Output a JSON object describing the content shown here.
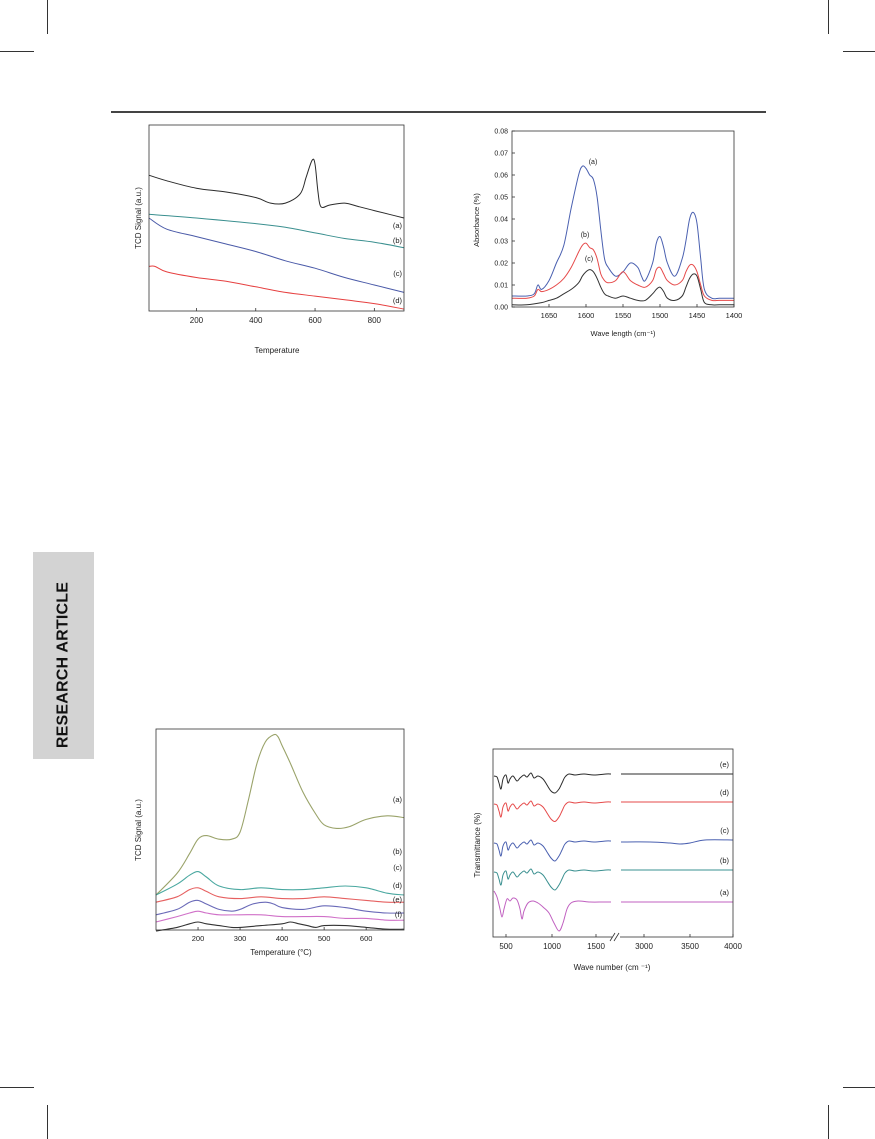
{
  "side_tab": {
    "label": "RESEARCH ARTICLE"
  },
  "chart_data": [
    {
      "type": "line",
      "ylabel": "TCD Signal (a.u.)",
      "xlabel": "Temperature",
      "xlim": [
        40,
        900
      ],
      "xticks": [
        200,
        400,
        600,
        800
      ],
      "grid": false,
      "series": [
        {
          "name": "(a)",
          "color": "#2b2b2b",
          "x": [
            40,
            100,
            200,
            300,
            400,
            450,
            500,
            550,
            570,
            590,
            600,
            610,
            620,
            650,
            700,
            750,
            800,
            850,
            900
          ],
          "y": [
            0.73,
            0.7,
            0.66,
            0.64,
            0.61,
            0.58,
            0.58,
            0.63,
            0.72,
            0.81,
            0.79,
            0.64,
            0.56,
            0.57,
            0.58,
            0.56,
            0.54,
            0.52,
            0.5
          ]
        },
        {
          "name": "(b)",
          "color": "#3a8f8f",
          "x": [
            40,
            200,
            400,
            500,
            600,
            700,
            800,
            900
          ],
          "y": [
            0.52,
            0.5,
            0.47,
            0.45,
            0.42,
            0.39,
            0.37,
            0.34
          ]
        },
        {
          "name": "(c)",
          "color": "#4a5aa8",
          "x": [
            40,
            100,
            200,
            300,
            400,
            500,
            600,
            700,
            800,
            900
          ],
          "y": [
            0.5,
            0.44,
            0.4,
            0.36,
            0.32,
            0.27,
            0.23,
            0.18,
            0.14,
            0.1
          ]
        },
        {
          "name": "(d)",
          "color": "#e64040",
          "x": [
            40,
            60,
            100,
            200,
            300,
            400,
            500,
            600,
            700,
            800,
            900
          ],
          "y": [
            0.24,
            0.24,
            0.21,
            0.18,
            0.16,
            0.13,
            0.1,
            0.08,
            0.06,
            0.04,
            0.01
          ]
        }
      ]
    },
    {
      "type": "line",
      "ylabel": "Absorbance (%)",
      "xlabel": "Wave length (cm⁻¹)",
      "xlim": [
        1700,
        1400
      ],
      "xticks": [
        1650,
        1600,
        1550,
        1500,
        1450,
        1400
      ],
      "ylim": [
        0,
        0.08
      ],
      "yticks": [
        "0.00",
        "0.01",
        "0.02",
        "0.03",
        "0.04",
        "0.05",
        "0.06",
        "0.07",
        "0.08"
      ],
      "grid": false,
      "series": [
        {
          "name": "(a)",
          "color": "#4a60b0",
          "x": [
            1700,
            1680,
            1670,
            1665,
            1660,
            1650,
            1640,
            1630,
            1620,
            1610,
            1605,
            1600,
            1595,
            1590,
            1585,
            1580,
            1575,
            1570,
            1560,
            1550,
            1540,
            1530,
            1525,
            1520,
            1510,
            1505,
            1500,
            1495,
            1490,
            1480,
            1470,
            1465,
            1460,
            1455,
            1450,
            1445,
            1440,
            1430,
            1420,
            1410,
            1400
          ],
          "y": [
            0.005,
            0.005,
            0.006,
            0.01,
            0.008,
            0.012,
            0.02,
            0.028,
            0.045,
            0.06,
            0.064,
            0.063,
            0.06,
            0.058,
            0.05,
            0.035,
            0.022,
            0.018,
            0.014,
            0.016,
            0.02,
            0.018,
            0.014,
            0.012,
            0.02,
            0.029,
            0.032,
            0.027,
            0.02,
            0.014,
            0.022,
            0.03,
            0.04,
            0.043,
            0.038,
            0.022,
            0.008,
            0.004,
            0.004,
            0.004,
            0.004
          ]
        },
        {
          "name": "(b)",
          "color": "#e64a4a",
          "x": [
            1700,
            1680,
            1670,
            1665,
            1660,
            1650,
            1640,
            1630,
            1620,
            1610,
            1605,
            1600,
            1595,
            1590,
            1585,
            1580,
            1575,
            1570,
            1560,
            1550,
            1540,
            1530,
            1520,
            1510,
            1505,
            1500,
            1495,
            1490,
            1480,
            1470,
            1465,
            1460,
            1455,
            1450,
            1445,
            1440,
            1430,
            1420,
            1410,
            1400
          ],
          "y": [
            0.004,
            0.004,
            0.005,
            0.008,
            0.007,
            0.008,
            0.01,
            0.013,
            0.018,
            0.025,
            0.028,
            0.029,
            0.027,
            0.026,
            0.022,
            0.015,
            0.012,
            0.011,
            0.012,
            0.016,
            0.012,
            0.01,
            0.009,
            0.012,
            0.017,
            0.018,
            0.015,
            0.012,
            0.01,
            0.012,
            0.016,
            0.019,
            0.019,
            0.016,
            0.01,
            0.005,
            0.003,
            0.003,
            0.003,
            0.003
          ]
        },
        {
          "name": "(c)",
          "color": "#333333",
          "x": [
            1700,
            1680,
            1660,
            1650,
            1640,
            1630,
            1620,
            1610,
            1605,
            1600,
            1595,
            1590,
            1585,
            1580,
            1575,
            1570,
            1560,
            1550,
            1540,
            1530,
            1520,
            1510,
            1505,
            1500,
            1495,
            1490,
            1480,
            1470,
            1465,
            1460,
            1455,
            1450,
            1445,
            1440,
            1430,
            1420,
            1410,
            1400
          ],
          "y": [
            0.001,
            0.001,
            0.002,
            0.003,
            0.004,
            0.006,
            0.008,
            0.011,
            0.014,
            0.016,
            0.017,
            0.016,
            0.013,
            0.009,
            0.006,
            0.005,
            0.004,
            0.005,
            0.004,
            0.003,
            0.003,
            0.006,
            0.008,
            0.009,
            0.007,
            0.004,
            0.003,
            0.005,
            0.009,
            0.013,
            0.015,
            0.014,
            0.008,
            0.002,
            0.001,
            0.001,
            0.001,
            0.001
          ]
        }
      ]
    },
    {
      "type": "line",
      "ylabel": "TCD Signal (a.u.)",
      "xlabel": "Temperature (°C)",
      "xlim": [
        100,
        690
      ],
      "xticks": [
        200,
        300,
        400,
        500,
        600
      ],
      "grid": false,
      "series": [
        {
          "name": "(a)",
          "color": "#9aa36a",
          "x": [
            100,
            150,
            180,
            200,
            220,
            250,
            280,
            300,
            320,
            340,
            360,
            380,
            390,
            400,
            420,
            450,
            480,
            500,
            530,
            560,
            600,
            650,
            690
          ],
          "y": [
            0.15,
            0.27,
            0.38,
            0.46,
            0.48,
            0.46,
            0.46,
            0.5,
            0.68,
            0.88,
            1.0,
            1.04,
            1.03,
            0.98,
            0.88,
            0.72,
            0.6,
            0.54,
            0.52,
            0.53,
            0.57,
            0.59,
            0.58
          ]
        },
        {
          "name": "(b)",
          "color": "#4aa8a0",
          "x": [
            100,
            150,
            180,
            200,
            220,
            250,
            300,
            350,
            400,
            450,
            500,
            550,
            600,
            650,
            690
          ],
          "y": [
            0.15,
            0.21,
            0.26,
            0.28,
            0.25,
            0.2,
            0.18,
            0.19,
            0.18,
            0.18,
            0.19,
            0.2,
            0.19,
            0.16,
            0.15
          ]
        },
        {
          "name": "(c)",
          "color": "#e66060",
          "x": [
            100,
            150,
            180,
            200,
            220,
            250,
            300,
            350,
            400,
            450,
            500,
            550,
            600,
            650,
            690
          ],
          "y": [
            0.11,
            0.14,
            0.18,
            0.19,
            0.17,
            0.14,
            0.13,
            0.14,
            0.13,
            0.13,
            0.14,
            0.13,
            0.12,
            0.11,
            0.11
          ]
        },
        {
          "name": "(d)",
          "color": "#6a6ab8",
          "x": [
            100,
            150,
            180,
            200,
            220,
            250,
            280,
            300,
            330,
            360,
            380,
            400,
            450,
            500,
            550,
            600,
            650,
            690
          ],
          "y": [
            0.04,
            0.07,
            0.11,
            0.12,
            0.1,
            0.07,
            0.06,
            0.07,
            0.1,
            0.11,
            0.1,
            0.08,
            0.07,
            0.09,
            0.08,
            0.06,
            0.05,
            0.05
          ]
        },
        {
          "name": "(e)",
          "color": "#d070c8",
          "x": [
            100,
            150,
            180,
            200,
            220,
            250,
            300,
            350,
            400,
            450,
            500,
            550,
            600,
            650,
            690
          ],
          "y": [
            0.0,
            0.03,
            0.05,
            0.06,
            0.05,
            0.04,
            0.04,
            0.04,
            0.03,
            0.03,
            0.03,
            0.02,
            0.02,
            0.01,
            0.01
          ]
        },
        {
          "name": "(f)",
          "color": "#333333",
          "x": [
            100,
            150,
            180,
            200,
            220,
            250,
            280,
            300,
            350,
            400,
            420,
            440,
            460,
            480,
            500,
            550,
            600,
            650,
            690
          ],
          "y": [
            -0.05,
            -0.03,
            -0.01,
            0.0,
            -0.01,
            -0.02,
            -0.03,
            -0.03,
            -0.02,
            -0.01,
            0.0,
            -0.01,
            -0.02,
            -0.03,
            -0.02,
            -0.02,
            -0.03,
            -0.04,
            -0.04
          ]
        }
      ]
    },
    {
      "type": "line",
      "ylabel": "Transmittance (%)",
      "xlabel": "Wave number (cm ⁻¹)",
      "xticks": [
        "500",
        "1000",
        "1500",
        "3000",
        "3500",
        "4000"
      ],
      "axis_break": true,
      "grid": false,
      "series": [
        {
          "name": "(e)",
          "color": "#2b2b2b"
        },
        {
          "name": "(d)",
          "color": "#e64a4a"
        },
        {
          "name": "(c)",
          "color": "#4a60b0"
        },
        {
          "name": "(b)",
          "color": "#3a9090"
        },
        {
          "name": "(a)",
          "color": "#c060c0"
        }
      ]
    }
  ]
}
